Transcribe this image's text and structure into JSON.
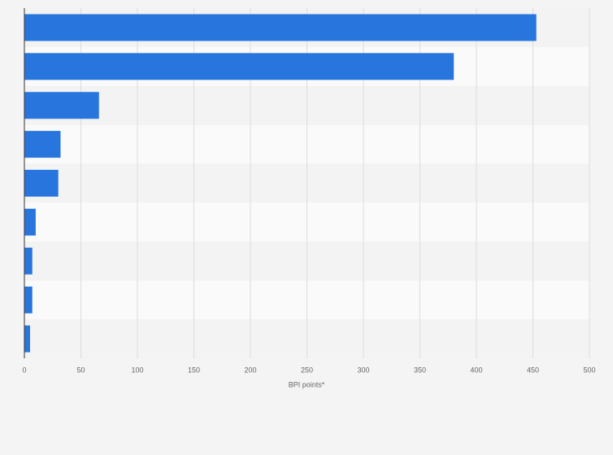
{
  "chart_data": {
    "type": "hbar",
    "categories": [
      null,
      null,
      null,
      null,
      null,
      null,
      null,
      null,
      null
    ],
    "values": [
      453,
      380,
      66,
      32,
      30,
      10,
      7,
      7,
      5
    ],
    "color": "#2876dd",
    "xlabel": "BPI points*",
    "xlim": [
      0,
      500
    ],
    "xticks": [
      0,
      50,
      100,
      150,
      200,
      250,
      300,
      350,
      400,
      450,
      500
    ],
    "grid": true
  }
}
